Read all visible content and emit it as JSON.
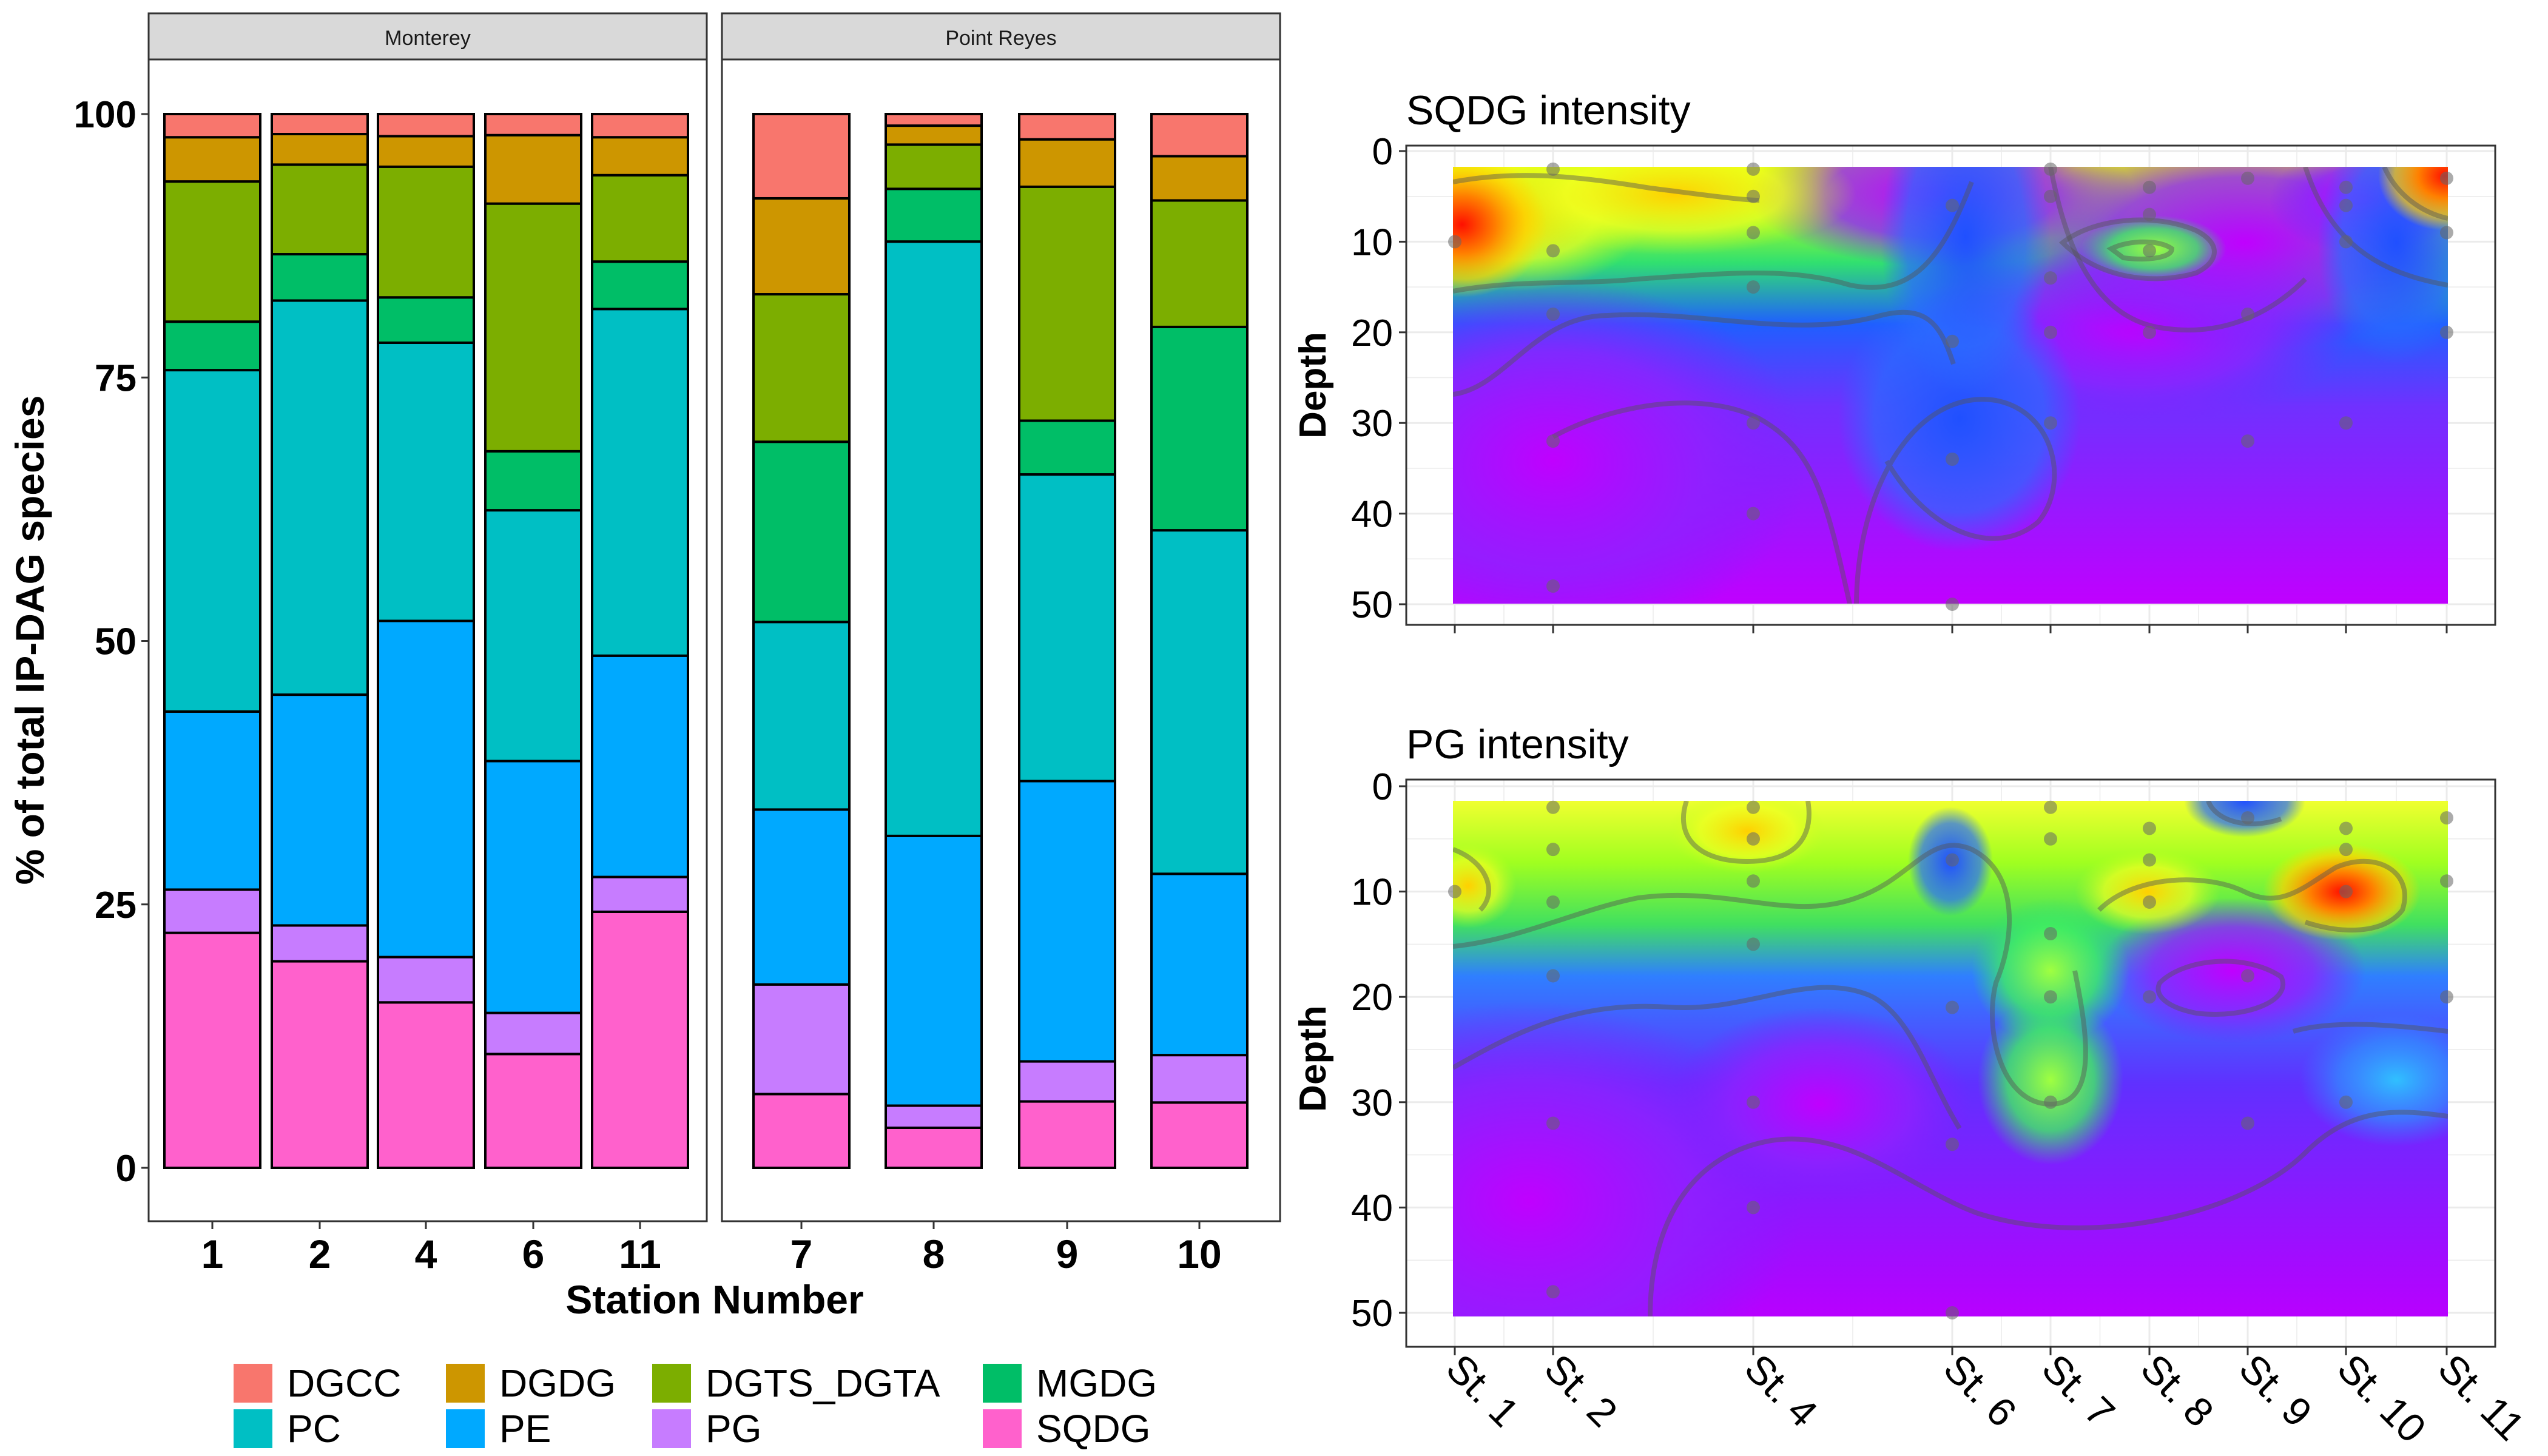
{
  "chart_data": [
    {
      "type": "bar",
      "subtype": "stacked-100",
      "ylabel": "% of total IP-DAG species",
      "xlabel": "Station Number",
      "ylim": [
        0,
        100
      ],
      "yticks": [
        0,
        25,
        50,
        75,
        100
      ],
      "series_order_bottom_to_top": [
        "SQDG",
        "PG",
        "PE",
        "PC",
        "MGDG",
        "DGTS_DGTA",
        "DGDG",
        "DGCC"
      ],
      "colors": {
        "DGCC": "#F8766D",
        "DGDG": "#CD9600",
        "DGTS_DGTA": "#7CAE00",
        "MGDG": "#00BE67",
        "PC": "#00BFC4",
        "PE": "#00A9FF",
        "PG": "#C77CFF",
        "SQDG": "#FF61CC"
      },
      "legend": {
        "position": "bottom",
        "items": [
          "DGCC",
          "DGDG",
          "DGTS_DGTA",
          "MGDG",
          "PC",
          "PE",
          "PG",
          "SQDG"
        ]
      },
      "facets": [
        {
          "label": "Monterey",
          "categories": [
            "1",
            "2",
            "4",
            "6",
            "11"
          ],
          "series": [
            {
              "name": "SQDG",
              "values": [
                22.3,
                19.6,
                15.7,
                10.8,
                24.3
              ]
            },
            {
              "name": "PG",
              "values": [
                4.1,
                3.4,
                4.3,
                3.9,
                3.3
              ]
            },
            {
              "name": "PE",
              "values": [
                16.9,
                21.9,
                31.9,
                23.9,
                21.0
              ]
            },
            {
              "name": "PC",
              "values": [
                32.4,
                37.4,
                26.4,
                23.8,
                32.9
              ]
            },
            {
              "name": "MGDG",
              "values": [
                4.6,
                4.4,
                4.3,
                5.6,
                4.5
              ]
            },
            {
              "name": "DGTS_DGTA",
              "values": [
                13.3,
                8.5,
                12.4,
                23.5,
                8.2
              ]
            },
            {
              "name": "DGDG",
              "values": [
                4.2,
                2.9,
                2.9,
                6.5,
                3.6
              ]
            },
            {
              "name": "DGCC",
              "values": [
                2.2,
                1.9,
                2.1,
                2.0,
                2.2
              ]
            }
          ]
        },
        {
          "label": "Point Reyes",
          "categories": [
            "7",
            "8",
            "9",
            "10"
          ],
          "series": [
            {
              "name": "SQDG",
              "values": [
                7.0,
                3.8,
                6.3,
                6.2
              ]
            },
            {
              "name": "PG",
              "values": [
                10.4,
                2.1,
                3.8,
                4.5
              ]
            },
            {
              "name": "PE",
              "values": [
                16.6,
                25.6,
                26.6,
                17.2
              ]
            },
            {
              "name": "PC",
              "values": [
                17.8,
                56.4,
                29.1,
                32.6
              ]
            },
            {
              "name": "MGDG",
              "values": [
                17.1,
                5.0,
                5.1,
                19.3
              ]
            },
            {
              "name": "DGTS_DGTA",
              "values": [
                14.0,
                4.2,
                22.2,
                12.0
              ]
            },
            {
              "name": "DGDG",
              "values": [
                9.1,
                1.8,
                4.5,
                4.2
              ]
            },
            {
              "name": "DGCC",
              "values": [
                8.0,
                1.1,
                2.4,
                4.0
              ]
            }
          ]
        }
      ]
    },
    {
      "type": "heatmap",
      "title": "SQDG intensity",
      "ylabel": "Depth",
      "ylim": [
        0,
        52
      ],
      "y_reversed": true,
      "yticks": [
        0,
        10,
        20,
        30,
        40,
        50
      ],
      "x_labels": [
        "St. 1",
        "St. 2",
        "St. 4",
        "St. 6",
        "St. 7",
        "St. 8",
        "St. 9",
        "St. 10",
        "St. 11"
      ],
      "colormap": "rainbow (magenta low, red high)",
      "samples": [
        {
          "station": "St. 1",
          "depth": 10
        },
        {
          "station": "St. 2",
          "depth": 2
        },
        {
          "station": "St. 2",
          "depth": 11
        },
        {
          "station": "St. 2",
          "depth": 18
        },
        {
          "station": "St. 2",
          "depth": 32
        },
        {
          "station": "St. 2",
          "depth": 48
        },
        {
          "station": "St. 4",
          "depth": 2
        },
        {
          "station": "St. 4",
          "depth": 5
        },
        {
          "station": "St. 4",
          "depth": 9
        },
        {
          "station": "St. 4",
          "depth": 15
        },
        {
          "station": "St. 4",
          "depth": 30
        },
        {
          "station": "St. 4",
          "depth": 40
        },
        {
          "station": "St. 6",
          "depth": 6
        },
        {
          "station": "St. 6",
          "depth": 21
        },
        {
          "station": "St. 6",
          "depth": 34
        },
        {
          "station": "St. 6",
          "depth": 50
        },
        {
          "station": "St. 7",
          "depth": 2
        },
        {
          "station": "St. 7",
          "depth": 5
        },
        {
          "station": "St. 7",
          "depth": 14
        },
        {
          "station": "St. 7",
          "depth": 20
        },
        {
          "station": "St. 7",
          "depth": 30
        },
        {
          "station": "St. 8",
          "depth": 4
        },
        {
          "station": "St. 8",
          "depth": 7
        },
        {
          "station": "St. 8",
          "depth": 11
        },
        {
          "station": "St. 8",
          "depth": 20
        },
        {
          "station": "St. 9",
          "depth": 3
        },
        {
          "station": "St. 9",
          "depth": 18
        },
        {
          "station": "St. 9",
          "depth": 32
        },
        {
          "station": "St. 10",
          "depth": 4
        },
        {
          "station": "St. 10",
          "depth": 6
        },
        {
          "station": "St. 10",
          "depth": 10
        },
        {
          "station": "St. 10",
          "depth": 30
        },
        {
          "station": "St. 11",
          "depth": 3
        },
        {
          "station": "St. 11",
          "depth": 9
        },
        {
          "station": "St. 11",
          "depth": 20
        }
      ],
      "grid": true
    },
    {
      "type": "heatmap",
      "title": "PG intensity",
      "ylabel": "Depth",
      "ylim": [
        0,
        52
      ],
      "y_reversed": true,
      "yticks": [
        0,
        10,
        20,
        30,
        40,
        50
      ],
      "x_labels": [
        "St. 1",
        "St. 2",
        "St. 4",
        "St. 6",
        "St. 7",
        "St. 8",
        "St. 9",
        "St. 10",
        "St. 11"
      ],
      "colormap": "rainbow (magenta low, red high)",
      "samples": [
        {
          "station": "St. 1",
          "depth": 10
        },
        {
          "station": "St. 2",
          "depth": 2
        },
        {
          "station": "St. 2",
          "depth": 6
        },
        {
          "station": "St. 2",
          "depth": 11
        },
        {
          "station": "St. 2",
          "depth": 18
        },
        {
          "station": "St. 2",
          "depth": 32
        },
        {
          "station": "St. 2",
          "depth": 48
        },
        {
          "station": "St. 4",
          "depth": 2
        },
        {
          "station": "St. 4",
          "depth": 5
        },
        {
          "station": "St. 4",
          "depth": 9
        },
        {
          "station": "St. 4",
          "depth": 15
        },
        {
          "station": "St. 4",
          "depth": 30
        },
        {
          "station": "St. 4",
          "depth": 40
        },
        {
          "station": "St. 6",
          "depth": 7
        },
        {
          "station": "St. 6",
          "depth": 21
        },
        {
          "station": "St. 6",
          "depth": 34
        },
        {
          "station": "St. 6",
          "depth": 50
        },
        {
          "station": "St. 7",
          "depth": 2
        },
        {
          "station": "St. 7",
          "depth": 5
        },
        {
          "station": "St. 7",
          "depth": 14
        },
        {
          "station": "St. 7",
          "depth": 20
        },
        {
          "station": "St. 7",
          "depth": 30
        },
        {
          "station": "St. 8",
          "depth": 4
        },
        {
          "station": "St. 8",
          "depth": 7
        },
        {
          "station": "St. 8",
          "depth": 11
        },
        {
          "station": "St. 8",
          "depth": 20
        },
        {
          "station": "St. 9",
          "depth": 3
        },
        {
          "station": "St. 9",
          "depth": 18
        },
        {
          "station": "St. 9",
          "depth": 32
        },
        {
          "station": "St. 10",
          "depth": 4
        },
        {
          "station": "St. 10",
          "depth": 6
        },
        {
          "station": "St. 10",
          "depth": 10
        },
        {
          "station": "St. 10",
          "depth": 30
        },
        {
          "station": "St. 11",
          "depth": 3
        },
        {
          "station": "St. 11",
          "depth": 9
        },
        {
          "station": "St. 11",
          "depth": 20
        }
      ],
      "grid": true
    }
  ]
}
